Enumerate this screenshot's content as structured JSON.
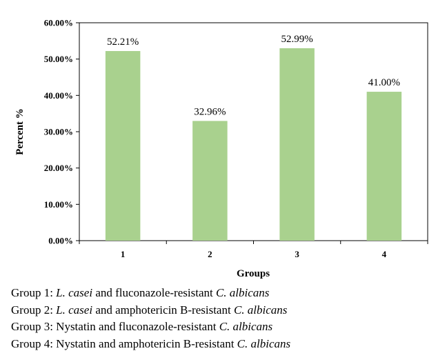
{
  "chart_data": {
    "type": "bar",
    "categories": [
      "1",
      "2",
      "3",
      "4"
    ],
    "values": [
      52.21,
      32.96,
      52.99,
      41.0
    ],
    "data_labels": [
      "52.21%",
      "32.96%",
      "52.99%",
      "41.00%"
    ],
    "ylim": [
      0,
      60
    ],
    "yticks": [
      0,
      10,
      20,
      30,
      40,
      50,
      60
    ],
    "ytick_labels": [
      "0.00%",
      "10.00%",
      "20.00%",
      "30.00%",
      "40.00%",
      "50.00%",
      "60.00%"
    ],
    "xlabel": "Groups",
    "ylabel": "Percent %",
    "bar_color": "#a9d18e",
    "grid": false,
    "legend": false
  },
  "captions": [
    {
      "prefix": "Group 1: ",
      "organism": "L. casei",
      "middle": " and fluconazole-resistant ",
      "target": "C. albicans"
    },
    {
      "prefix": "Group 2: ",
      "organism": "L. casei",
      "middle": " and amphotericin B-resistant ",
      "target": "C. albicans"
    },
    {
      "prefix": "Group 3: Nystatin",
      "organism": "",
      "middle": " and fluconazole-resistant ",
      "target": "C. albicans"
    },
    {
      "prefix": "Group 4: Nystatin",
      "organism": "",
      "middle": " and amphotericin B-resistant ",
      "target": "C. albicans"
    }
  ]
}
